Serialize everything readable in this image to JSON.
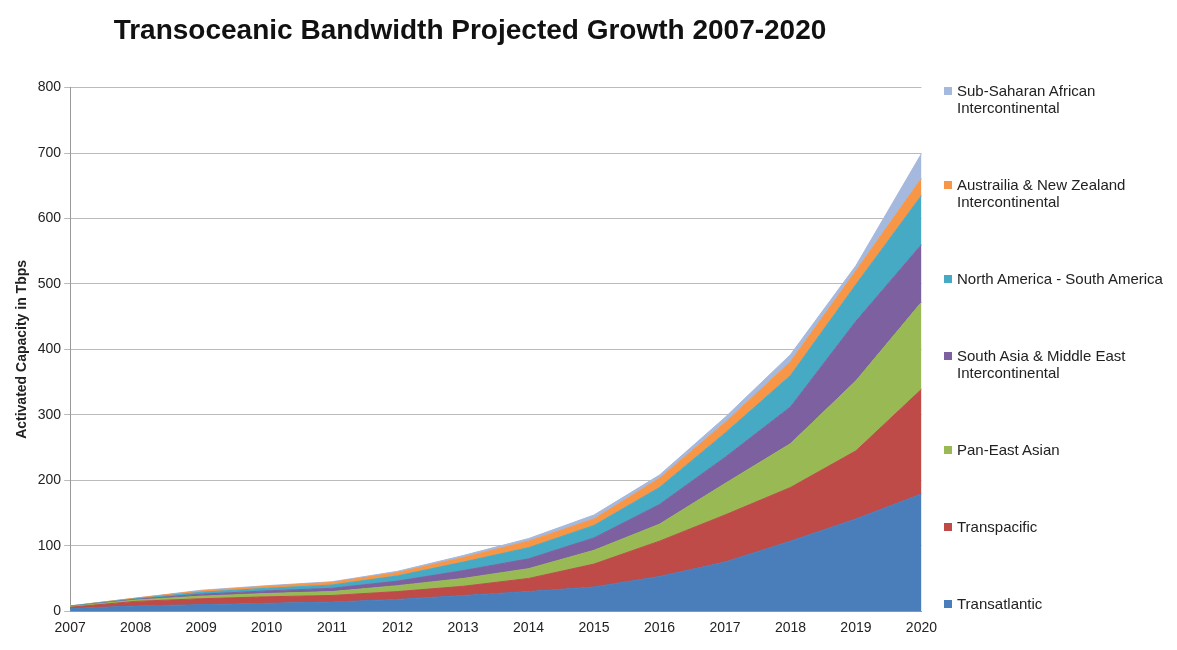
{
  "chart_data": {
    "type": "area",
    "title": "Transoceanic Bandwidth Projected Growth 2007-2020",
    "ylabel": "Activated Capacity in Tbps",
    "categories": [
      "2007",
      "2008",
      "2009",
      "2010",
      "2011",
      "2012",
      "2013",
      "2014",
      "2015",
      "2016",
      "2017",
      "2018",
      "2019",
      "2020"
    ],
    "stacked": true,
    "ylim": [
      0,
      800
    ],
    "yticks": [
      0,
      100,
      200,
      300,
      400,
      500,
      600,
      700,
      800
    ],
    "grid": "y",
    "legend": "right",
    "series": [
      {
        "name": "Transatlantic",
        "color": "#4a7ebb",
        "values": [
          4,
          8,
          10,
          12,
          14,
          18,
          24,
          30,
          37,
          53,
          75,
          107,
          141,
          179
        ]
      },
      {
        "name": "Transpacific",
        "color": "#be4b48",
        "values": [
          2,
          7,
          9,
          10,
          10,
          12,
          14,
          20,
          35,
          54,
          72,
          82,
          104,
          160
        ]
      },
      {
        "name": "Pan-East Asian",
        "color": "#98b954",
        "values": [
          1,
          2,
          4,
          5,
          6,
          9,
          12,
          15,
          21,
          26,
          48,
          67,
          107,
          133
        ]
      },
      {
        "name": "South Asia & Middle East Intercontinental",
        "color": "#7d60a0",
        "values": [
          0,
          1,
          3,
          4,
          5,
          7,
          12,
          15,
          19,
          30,
          40,
          56,
          91,
          88
        ]
      },
      {
        "name": "North America - South America",
        "color": "#46aac5",
        "values": [
          1,
          1,
          3,
          4,
          5,
          8,
          13,
          17,
          19,
          26,
          37,
          48,
          56,
          75
        ]
      },
      {
        "name": "Austrailia & New Zealand Intercontinental",
        "color": "#f79646",
        "values": [
          0,
          1,
          2,
          3,
          4,
          5,
          7,
          10,
          10,
          14,
          16,
          21,
          21,
          26
        ]
      },
      {
        "name": "Sub-Saharan African Intercontinental",
        "color": "#a5b8dd",
        "values": [
          0,
          0,
          1,
          1,
          1,
          2,
          3,
          4,
          6,
          5,
          8,
          11,
          8,
          38
        ]
      }
    ]
  }
}
